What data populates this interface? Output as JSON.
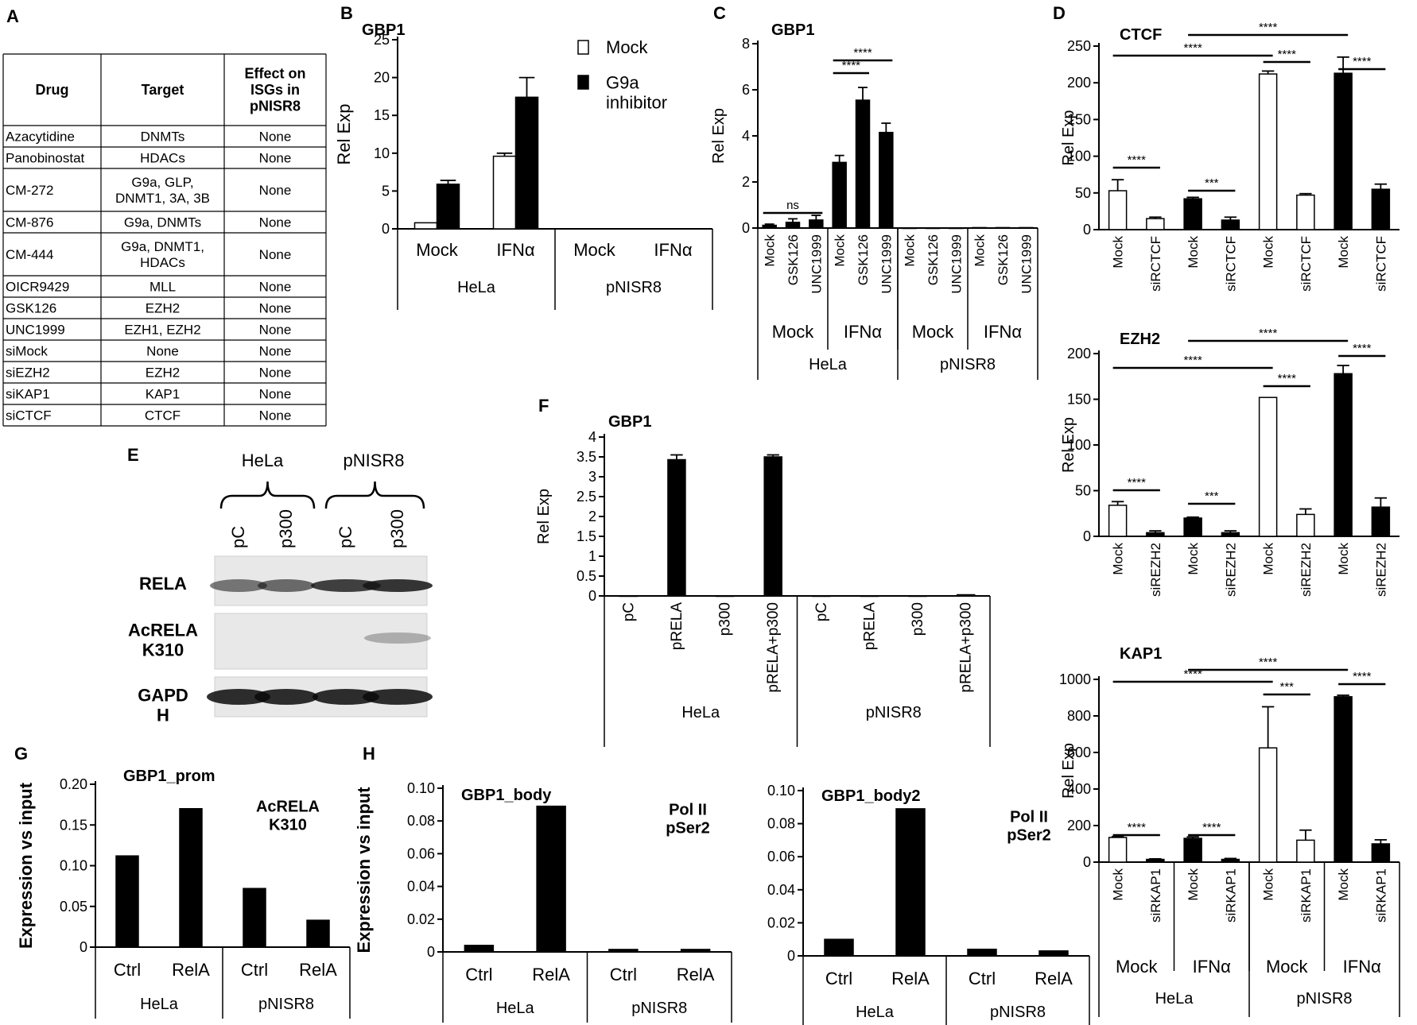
{
  "panels": {
    "A": {
      "letter": "A",
      "headers": [
        "Drug",
        "Target",
        "Effect on\nISGs in\npNISR8"
      ],
      "rows": [
        [
          "Azacytidine",
          "DNMTs",
          "None"
        ],
        [
          "Panobinostat",
          "HDACs",
          "None"
        ],
        [
          "CM-272",
          "G9a, GLP,\nDNMT1, 3A, 3B",
          "None"
        ],
        [
          "CM-876",
          "G9a, DNMTs",
          "None"
        ],
        [
          "CM-444",
          "G9a, DNMT1,\nHDACs",
          "None"
        ],
        [
          "OICR9429",
          "MLL",
          "None"
        ],
        [
          "GSK126",
          "EZH2",
          "None"
        ],
        [
          "UNC1999",
          "EZH1, EZH2",
          "None"
        ],
        [
          "siMock",
          "None",
          "None"
        ],
        [
          "siEZH2",
          "EZH2",
          "None"
        ],
        [
          "siKAP1",
          "KAP1",
          "None"
        ],
        [
          "siCTCF",
          "CTCF",
          "None"
        ]
      ]
    },
    "E": {
      "letter": "E",
      "groups": [
        "HeLa",
        "pNISR8"
      ],
      "lanes": [
        "pC",
        "p300",
        "pC",
        "p300"
      ],
      "rows": [
        "RELA",
        "AcRELA\nK310",
        "GAPD\nH"
      ]
    }
  },
  "chart_data": [
    {
      "id": "B",
      "letter": "B",
      "type": "bar",
      "title": "GBP1",
      "ylabel": "Rel Exp",
      "ylim": [
        0,
        25
      ],
      "yticks": [
        0,
        5,
        10,
        15,
        20,
        25
      ],
      "categories": [
        "Mock",
        "IFNα",
        "Mock",
        "IFNα"
      ],
      "groups": [
        {
          "label": "HeLa",
          "span": [
            0,
            1
          ]
        },
        {
          "label": "pNISR8",
          "span": [
            2,
            3
          ]
        }
      ],
      "series": [
        {
          "name": "Mock",
          "fill": "#ffffff",
          "values": [
            0.8,
            9.6,
            0,
            0
          ],
          "errors": [
            0,
            0.4,
            0,
            0
          ]
        },
        {
          "name": "G9a\ninhibitor",
          "fill": "#000000",
          "values": [
            5.9,
            17.4,
            0,
            0
          ],
          "errors": [
            0.5,
            2.6,
            0,
            0
          ]
        }
      ],
      "legend": "top-right"
    },
    {
      "id": "C",
      "letter": "C",
      "type": "bar",
      "title": "GBP1",
      "ylabel": "Rel Exp",
      "ylim": [
        0,
        8
      ],
      "yticks": [
        0,
        2,
        4,
        6,
        8
      ],
      "categories": [
        "Mock",
        "GSK126",
        "UNC1999",
        "Mock",
        "GSK126",
        "UNC1999",
        "Mock",
        "GSK126",
        "UNC1999",
        "Mock",
        "GSK126",
        "UNC1999"
      ],
      "subgroups": [
        {
          "label": "Mock",
          "span": [
            0,
            2
          ]
        },
        {
          "label": "IFNα",
          "span": [
            3,
            5
          ]
        },
        {
          "label": "Mock",
          "span": [
            6,
            8
          ]
        },
        {
          "label": "IFNα",
          "span": [
            9,
            11
          ]
        }
      ],
      "groups": [
        {
          "label": "HeLa",
          "span": [
            0,
            5
          ]
        },
        {
          "label": "pNISR8",
          "span": [
            6,
            11
          ]
        }
      ],
      "values": [
        0.12,
        0.25,
        0.35,
        2.85,
        5.55,
        4.15,
        0,
        0,
        0,
        0.02,
        0.02,
        0.02
      ],
      "errors": [
        0.05,
        0.15,
        0.2,
        0.3,
        0.55,
        0.4,
        0,
        0,
        0,
        0,
        0,
        0
      ],
      "fills": [
        "#000",
        "#000",
        "#000",
        "#000",
        "#000",
        "#000",
        "#000",
        "#000",
        "#000",
        "#000",
        "#000",
        "#000"
      ],
      "brackets": [
        {
          "from": 0,
          "to": 2,
          "label": "ns"
        },
        {
          "from": 3,
          "to": 4,
          "label": "****"
        },
        {
          "from": 3,
          "to": 5,
          "label": "****"
        }
      ]
    },
    {
      "id": "D1",
      "letter": "D",
      "type": "bar",
      "title": "CTCF",
      "ylabel": "Rel Exp",
      "ylim": [
        0,
        250
      ],
      "yticks": [
        0,
        50,
        100,
        150,
        200,
        250
      ],
      "categories": [
        "Mock",
        "siRCTCF",
        "Mock",
        "siRCTCF",
        "Mock",
        "siRCTCF",
        "Mock",
        "siRCTCF"
      ],
      "values": [
        53,
        15,
        42,
        13,
        212,
        47,
        213,
        55
      ],
      "errors": [
        15,
        2,
        2,
        4,
        4,
        2,
        22,
        7
      ],
      "fills": [
        "#fff",
        "#fff",
        "#000",
        "#000",
        "#fff",
        "#fff",
        "#000",
        "#000"
      ],
      "brackets": [
        {
          "from": 0,
          "to": 1,
          "label": "****"
        },
        {
          "from": 2,
          "to": 3,
          "label": "***"
        },
        {
          "from": 4,
          "to": 5,
          "label": "****"
        },
        {
          "from": 6,
          "to": 7,
          "label": "****"
        },
        {
          "from": 0,
          "to": 4,
          "label": "****"
        },
        {
          "from": 2,
          "to": 6,
          "label": "****"
        }
      ]
    },
    {
      "id": "D2",
      "type": "bar",
      "title": "EZH2",
      "ylabel": "Rel Exp",
      "ylim": [
        0,
        200
      ],
      "yticks": [
        0,
        50,
        100,
        150,
        200
      ],
      "categories": [
        "Mock",
        "siREZH2",
        "Mock",
        "siREZH2",
        "Mock",
        "siREZH2",
        "Mock",
        "siREZH2"
      ],
      "values": [
        34,
        4,
        20,
        4,
        152,
        24,
        178,
        32
      ],
      "errors": [
        4,
        2,
        1,
        2,
        0,
        6,
        9,
        10
      ],
      "fills": [
        "#fff",
        "#000",
        "#000",
        "#000",
        "#fff",
        "#fff",
        "#000",
        "#000"
      ],
      "brackets": [
        {
          "from": 0,
          "to": 1,
          "label": "****"
        },
        {
          "from": 2,
          "to": 3,
          "label": "***"
        },
        {
          "from": 4,
          "to": 5,
          "label": "****"
        },
        {
          "from": 6,
          "to": 7,
          "label": "****"
        },
        {
          "from": 0,
          "to": 4,
          "label": "****"
        },
        {
          "from": 2,
          "to": 6,
          "label": "****"
        }
      ]
    },
    {
      "id": "D3",
      "type": "bar",
      "title": "KAP1",
      "ylabel": "Rel Exp",
      "ylim": [
        0,
        1000
      ],
      "yticks": [
        0,
        200,
        400,
        600,
        800,
        1000
      ],
      "categories": [
        "Mock",
        "siRKAP1",
        "Mock",
        "siRKAP1",
        "Mock",
        "siRKAP1",
        "Mock",
        "siRKAP1"
      ],
      "subgroups": [
        {
          "label": "Mock",
          "span": [
            0,
            1
          ]
        },
        {
          "label": "IFNα",
          "span": [
            2,
            3
          ]
        },
        {
          "label": "Mock",
          "span": [
            4,
            5
          ]
        },
        {
          "label": "IFNα",
          "span": [
            6,
            7
          ]
        }
      ],
      "groups": [
        {
          "label": "HeLa",
          "span": [
            0,
            3
          ]
        },
        {
          "label": "pNISR8",
          "span": [
            4,
            7
          ]
        }
      ],
      "values": [
        135,
        15,
        130,
        15,
        625,
        120,
        905,
        100
      ],
      "errors": [
        5,
        3,
        8,
        5,
        225,
        55,
        8,
        22
      ],
      "fills": [
        "#fff",
        "#000",
        "#000",
        "#000",
        "#fff",
        "#fff",
        "#000",
        "#000"
      ],
      "brackets": [
        {
          "from": 0,
          "to": 1,
          "label": "****"
        },
        {
          "from": 2,
          "to": 3,
          "label": "****"
        },
        {
          "from": 4,
          "to": 5,
          "label": "***"
        },
        {
          "from": 6,
          "to": 7,
          "label": "****"
        },
        {
          "from": 0,
          "to": 4,
          "label": "****"
        },
        {
          "from": 2,
          "to": 6,
          "label": "****"
        }
      ]
    },
    {
      "id": "F",
      "letter": "F",
      "type": "bar",
      "title": "GBP1",
      "ylabel": "Rel Exp",
      "ylim": [
        0,
        4
      ],
      "yticks": [
        0,
        0.5,
        1,
        1.5,
        2,
        2.5,
        3,
        3.5,
        4
      ],
      "categories": [
        "pC",
        "pRELA",
        "p300",
        "pRELA+p300",
        "pC",
        "pRELA",
        "p300",
        "pRELA+p300"
      ],
      "groups": [
        {
          "label": "HeLa",
          "span": [
            0,
            3
          ]
        },
        {
          "label": "pNISR8",
          "span": [
            4,
            7
          ]
        }
      ],
      "values": [
        0,
        3.43,
        0,
        3.5,
        0,
        0,
        0,
        0.03
      ],
      "errors": [
        0,
        0.12,
        0,
        0.05,
        0,
        0,
        0,
        0
      ],
      "fills": [
        "#000",
        "#000",
        "#000",
        "#000",
        "#000",
        "#000",
        "#000",
        "#000"
      ]
    },
    {
      "id": "G",
      "letter": "G",
      "type": "bar",
      "title": "GBP1_prom",
      "annotation": "AcRELA\nK310",
      "ylabel": "Expression vs input",
      "ylim": [
        0,
        0.2
      ],
      "yticks": [
        0,
        0.05,
        0.1,
        0.15,
        0.2
      ],
      "ytick_labels": [
        "0",
        "0.05",
        "0.10",
        "0.15",
        "0.20"
      ],
      "categories": [
        "Ctrl",
        "RelA",
        "Ctrl",
        "RelA"
      ],
      "groups": [
        {
          "label": "HeLa",
          "span": [
            0,
            1
          ]
        },
        {
          "label": "pNISR8",
          "span": [
            2,
            3
          ]
        }
      ],
      "values": [
        0.112,
        0.17,
        0.072,
        0.033
      ],
      "fills": [
        "#000",
        "#000",
        "#000",
        "#000"
      ]
    },
    {
      "id": "H1",
      "letter": "H",
      "type": "bar",
      "title": "GBP1_body",
      "annotation": "Pol II\npSer2",
      "ylabel": "Expression vs input",
      "ylim": [
        0,
        0.1
      ],
      "yticks": [
        0,
        0.02,
        0.04,
        0.06,
        0.08,
        0.1
      ],
      "ytick_labels": [
        "0",
        "0.02",
        "0.04",
        "0.06",
        "0.08",
        "0.10"
      ],
      "categories": [
        "Ctrl",
        "RelA",
        "Ctrl",
        "RelA"
      ],
      "groups": [
        {
          "label": "HeLa",
          "span": [
            0,
            1
          ]
        },
        {
          "label": "pNISR8",
          "span": [
            2,
            3
          ]
        }
      ],
      "values": [
        0.004,
        0.089,
        0.0015,
        0.0015
      ],
      "fills": [
        "#000",
        "#000",
        "#000",
        "#000"
      ]
    },
    {
      "id": "H2",
      "type": "bar",
      "title": "GBP1_body2",
      "annotation": "Pol II\npSer2",
      "ylabel": "",
      "ylim": [
        0,
        0.1
      ],
      "yticks": [
        0,
        0.02,
        0.04,
        0.06,
        0.08,
        0.1
      ],
      "ytick_labels": [
        "0",
        "0.02",
        "0.04",
        "0.06",
        "0.08",
        "0.10"
      ],
      "categories": [
        "Ctrl",
        "RelA",
        "Ctrl",
        "RelA"
      ],
      "groups": [
        {
          "label": "HeLa",
          "span": [
            0,
            1
          ]
        },
        {
          "label": "pNISR8",
          "span": [
            2,
            3
          ]
        }
      ],
      "values": [
        0.01,
        0.089,
        0.004,
        0.003
      ],
      "fills": [
        "#000",
        "#000",
        "#000",
        "#000"
      ]
    }
  ]
}
